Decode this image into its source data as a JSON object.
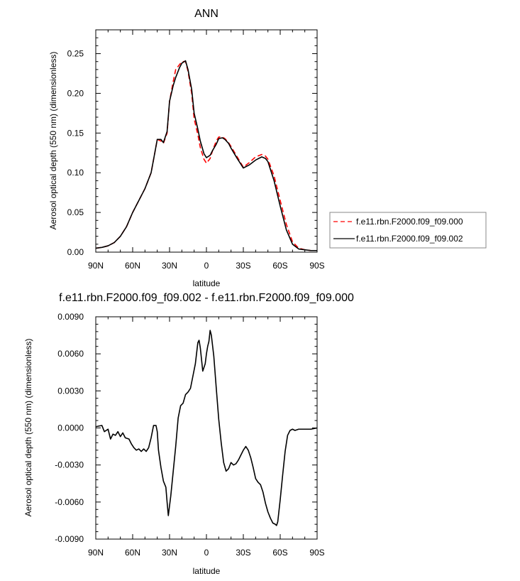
{
  "chart_data": [
    {
      "type": "line",
      "title": "ANN",
      "xlabel": "latitude",
      "ylabel": "Aerosol optical depth (550 nm) (dimensionless)",
      "x_ticks": [
        {
          "value": -90,
          "label": "90N"
        },
        {
          "value": -60,
          "label": "60N"
        },
        {
          "value": -30,
          "label": "30N"
        },
        {
          "value": 0,
          "label": "0"
        },
        {
          "value": 30,
          "label": "30S"
        },
        {
          "value": 60,
          "label": "60S"
        },
        {
          "value": 90,
          "label": "90S"
        }
      ],
      "y_ticks": [
        {
          "value": 0,
          "label": "0.00"
        },
        {
          "value": 0.05,
          "label": "0.05"
        },
        {
          "value": 0.1,
          "label": "0.10"
        },
        {
          "value": 0.15,
          "label": "0.15"
        },
        {
          "value": 0.2,
          "label": "0.20"
        },
        {
          "value": 0.25,
          "label": "0.25"
        }
      ],
      "xlim": [
        -90,
        90
      ],
      "ylim": [
        0,
        0.28
      ],
      "grid": false,
      "legend_position": "right",
      "series": [
        {
          "name": "f.e11.rbn.F2000.f09_f09.000",
          "color": "#ff0000",
          "dash": "dashed",
          "x": [
            -90,
            -85,
            -80,
            -75,
            -70,
            -65,
            -60,
            -55,
            -50,
            -45,
            -42,
            -40,
            -37,
            -35,
            -32,
            -30,
            -27,
            -25,
            -22,
            -20,
            -17,
            -15,
            -12,
            -10,
            -7,
            -5,
            -2,
            0,
            3,
            5,
            8,
            10,
            13,
            15,
            18,
            20,
            25,
            30,
            35,
            40,
            45,
            48,
            50,
            55,
            60,
            65,
            70,
            75,
            80,
            85,
            90
          ],
          "y": [
            0.005,
            0.006,
            0.008,
            0.012,
            0.02,
            0.032,
            0.05,
            0.065,
            0.08,
            0.1,
            0.125,
            0.142,
            0.14,
            0.137,
            0.15,
            0.19,
            0.215,
            0.23,
            0.236,
            0.24,
            0.24,
            0.228,
            0.2,
            0.168,
            0.148,
            0.132,
            0.117,
            0.112,
            0.118,
            0.128,
            0.14,
            0.145,
            0.145,
            0.143,
            0.138,
            0.133,
            0.12,
            0.107,
            0.113,
            0.12,
            0.123,
            0.121,
            0.117,
            0.096,
            0.065,
            0.035,
            0.013,
            0.005,
            0.003,
            0.002,
            0.002
          ]
        },
        {
          "name": "f.e11.rbn.F2000.f09_f09.002",
          "color": "#000000",
          "dash": "solid",
          "x": [
            -90,
            -85,
            -80,
            -75,
            -70,
            -65,
            -60,
            -55,
            -50,
            -45,
            -42,
            -40,
            -37,
            -35,
            -32,
            -30,
            -27,
            -25,
            -22,
            -20,
            -17,
            -15,
            -12,
            -10,
            -7,
            -5,
            -2,
            0,
            3,
            5,
            8,
            10,
            13,
            15,
            18,
            20,
            25,
            30,
            35,
            40,
            45,
            48,
            50,
            55,
            60,
            65,
            70,
            75,
            80,
            85,
            90
          ],
          "y": [
            0.005,
            0.006,
            0.008,
            0.012,
            0.02,
            0.032,
            0.05,
            0.065,
            0.08,
            0.1,
            0.125,
            0.142,
            0.142,
            0.138,
            0.152,
            0.19,
            0.21,
            0.22,
            0.232,
            0.238,
            0.241,
            0.23,
            0.205,
            0.175,
            0.155,
            0.14,
            0.124,
            0.119,
            0.122,
            0.128,
            0.136,
            0.143,
            0.144,
            0.142,
            0.137,
            0.131,
            0.118,
            0.106,
            0.11,
            0.116,
            0.12,
            0.118,
            0.114,
            0.09,
            0.058,
            0.028,
            0.01,
            0.004,
            0.003,
            0.002,
            0.002
          ]
        }
      ]
    },
    {
      "type": "line",
      "title": "f.e11.rbn.F2000.f09_f09.002 - f.e11.rbn.F2000.f09_f09.000",
      "xlabel": "latitude",
      "ylabel": "Aerosol optical depth (550 nm) (dimensionless)",
      "x_ticks": [
        {
          "value": -90,
          "label": "90N"
        },
        {
          "value": -60,
          "label": "60N"
        },
        {
          "value": -30,
          "label": "30N"
        },
        {
          "value": 0,
          "label": "0"
        },
        {
          "value": 30,
          "label": "30S"
        },
        {
          "value": 60,
          "label": "60S"
        },
        {
          "value": 90,
          "label": "90S"
        }
      ],
      "y_ticks": [
        {
          "value": -0.009,
          "label": "-0.0090"
        },
        {
          "value": -0.006,
          "label": "-0.0060"
        },
        {
          "value": -0.003,
          "label": "-0.0030"
        },
        {
          "value": 0,
          "label": "0.0000"
        },
        {
          "value": 0.003,
          "label": "0.0030"
        },
        {
          "value": 0.006,
          "label": "0.0060"
        },
        {
          "value": 0.009,
          "label": "0.0090"
        }
      ],
      "xlim": [
        -90,
        90
      ],
      "ylim": [
        -0.009,
        0.009
      ],
      "grid": false,
      "series": [
        {
          "name": "",
          "color": "#000000",
          "dash": "solid",
          "x": [
            -90,
            -85,
            -83,
            -80,
            -78,
            -76,
            -74,
            -72,
            -70,
            -68,
            -66,
            -63,
            -61,
            -59,
            -57,
            -55,
            -53,
            -51,
            -49,
            -47,
            -45,
            -43,
            -41,
            -40,
            -39,
            -37,
            -35,
            -33,
            -32,
            -31,
            -29,
            -27,
            -25,
            -23,
            -21,
            -19,
            -17,
            -15,
            -13,
            -11,
            -9,
            -7,
            -6,
            -5,
            -3,
            -1,
            0,
            1,
            2,
            3,
            4,
            6,
            8,
            10,
            12,
            14,
            16,
            18,
            20,
            22,
            24,
            26,
            28,
            30,
            32,
            34,
            36,
            38,
            40,
            42,
            44,
            46,
            48,
            50,
            52,
            54,
            56,
            57,
            58,
            60,
            62,
            64,
            66,
            68,
            70,
            72,
            75,
            80,
            85,
            90
          ],
          "y": [
            0.0001,
            0.0002,
            -0.0003,
            -0.0001,
            -0.0009,
            -0.0005,
            -0.0006,
            -0.0003,
            -0.0007,
            -0.0004,
            -0.0008,
            -0.0009,
            -0.0013,
            -0.0016,
            -0.0018,
            -0.0017,
            -0.0019,
            -0.0017,
            -0.0019,
            -0.0016,
            -0.0008,
            0.0002,
            0.0002,
            -0.0003,
            -0.0018,
            -0.0032,
            -0.0043,
            -0.0048,
            -0.006,
            -0.0071,
            -0.0055,
            -0.0035,
            -0.0015,
            0.0008,
            0.0018,
            0.002,
            0.0027,
            0.0029,
            0.0032,
            0.0042,
            0.0052,
            0.0069,
            0.0071,
            0.0065,
            0.0046,
            0.0052,
            0.006,
            0.0066,
            0.007,
            0.0079,
            0.0075,
            0.0058,
            0.0032,
            0.0007,
            -0.0012,
            -0.0028,
            -0.0035,
            -0.0033,
            -0.0028,
            -0.003,
            -0.0029,
            -0.0026,
            -0.0022,
            -0.0018,
            -0.0015,
            -0.0018,
            -0.0024,
            -0.0032,
            -0.0041,
            -0.0044,
            -0.0046,
            -0.0052,
            -0.0061,
            -0.0068,
            -0.0073,
            -0.0077,
            -0.0078,
            -0.0079,
            -0.0076,
            -0.0058,
            -0.0038,
            -0.0019,
            -0.0006,
            -0.0002,
            -0.0001,
            -0.0002,
            -0.0001,
            -0.0001,
            -0.0001,
            0.0
          ]
        }
      ]
    }
  ]
}
